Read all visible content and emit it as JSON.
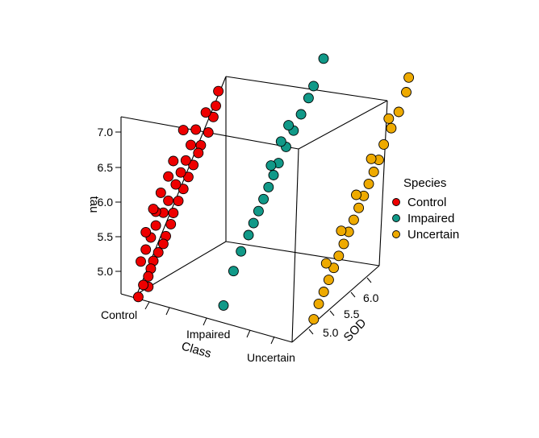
{
  "chart_data": {
    "type": "scatter3d",
    "x_axis": {
      "label": "Class",
      "categories": [
        "Control",
        "Impaired",
        "Uncertain"
      ]
    },
    "y_axis": {
      "label": "SOD",
      "ticks": [
        "5.0",
        "5.5",
        "6.0"
      ]
    },
    "z_axis": {
      "label": "tau",
      "ticks": [
        "5.0",
        "5.5",
        "6.0",
        "6.5",
        "7.0"
      ]
    },
    "legend": {
      "title": "Species",
      "position": "right"
    },
    "colors": {
      "Control": "#ee0000",
      "Impaired": "#119988",
      "Uncertain": "#eeaa00"
    },
    "series": [
      {
        "name": "Control",
        "points": [
          [
            0,
            6.25,
            7.1
          ],
          [
            0,
            6.2,
            6.95
          ],
          [
            0,
            6.1,
            6.75
          ],
          [
            0,
            5.95,
            6.6
          ],
          [
            0,
            5.9,
            6.5
          ],
          [
            0,
            5.8,
            6.35
          ],
          [
            0,
            5.7,
            6.2
          ],
          [
            0,
            5.6,
            6.05
          ],
          [
            0,
            5.5,
            5.9
          ],
          [
            0,
            5.4,
            5.75
          ],
          [
            0,
            5.35,
            5.6
          ],
          [
            0,
            5.25,
            5.45
          ],
          [
            0,
            5.2,
            5.35
          ],
          [
            0,
            5.1,
            5.25
          ],
          [
            0,
            5.0,
            5.15
          ],
          [
            0,
            4.95,
            5.05
          ],
          [
            0,
            4.9,
            4.95
          ],
          [
            0,
            4.8,
            4.85
          ],
          [
            0,
            4.7,
            4.7
          ],
          [
            0,
            6.3,
            7.3
          ],
          [
            0,
            6.05,
            7.05
          ],
          [
            0,
            5.85,
            6.85
          ],
          [
            0,
            5.75,
            6.65
          ],
          [
            0,
            5.65,
            6.45
          ],
          [
            0,
            5.55,
            6.3
          ],
          [
            0,
            5.45,
            6.15
          ],
          [
            0,
            5.3,
            5.95
          ],
          [
            0,
            5.2,
            5.8
          ],
          [
            0,
            5.05,
            5.65
          ],
          [
            0,
            4.95,
            5.5
          ],
          [
            0,
            4.85,
            5.35
          ],
          [
            0,
            4.75,
            5.2
          ],
          [
            0,
            5.0,
            5.9
          ],
          [
            0,
            4.85,
            5.6
          ],
          [
            0,
            4.9,
            4.8
          ],
          [
            0,
            5.6,
            6.9
          ],
          [
            0,
            5.4,
            6.5
          ],
          [
            0,
            5.15,
            6.1
          ],
          [
            0,
            5.3,
            6.3
          ],
          [
            0,
            5.05,
            5.85
          ]
        ]
      },
      {
        "name": "Impaired",
        "points": [
          [
            1,
            6.3,
            7.35
          ],
          [
            1,
            6.2,
            7.2
          ],
          [
            1,
            6.05,
            7.0
          ],
          [
            1,
            5.9,
            6.8
          ],
          [
            1,
            5.75,
            6.6
          ],
          [
            1,
            5.6,
            6.4
          ],
          [
            1,
            5.5,
            6.25
          ],
          [
            1,
            5.4,
            6.1
          ],
          [
            1,
            5.3,
            5.95
          ],
          [
            1,
            5.2,
            5.8
          ],
          [
            1,
            5.1,
            5.65
          ],
          [
            1,
            5.0,
            5.5
          ],
          [
            1,
            4.85,
            5.3
          ],
          [
            1,
            4.7,
            5.05
          ],
          [
            1,
            6.5,
            7.7
          ],
          [
            1,
            5.8,
            6.9
          ],
          [
            1,
            5.65,
            6.7
          ],
          [
            1,
            5.45,
            6.4
          ],
          [
            1,
            4.5,
            4.6
          ]
        ]
      },
      {
        "name": "Uncertain",
        "points": [
          [
            2,
            6.25,
            7.25
          ],
          [
            2,
            6.1,
            7.0
          ],
          [
            2,
            5.95,
            6.8
          ],
          [
            2,
            5.8,
            6.6
          ],
          [
            2,
            5.7,
            6.4
          ],
          [
            2,
            5.6,
            6.25
          ],
          [
            2,
            5.5,
            6.1
          ],
          [
            2,
            5.4,
            5.95
          ],
          [
            2,
            5.3,
            5.8
          ],
          [
            2,
            5.2,
            5.65
          ],
          [
            2,
            5.1,
            5.5
          ],
          [
            2,
            5.0,
            5.35
          ],
          [
            2,
            4.9,
            5.2
          ],
          [
            2,
            4.8,
            5.05
          ],
          [
            2,
            4.7,
            4.9
          ],
          [
            2,
            4.6,
            4.75
          ],
          [
            2,
            4.5,
            4.6
          ],
          [
            2,
            6.3,
            7.45
          ],
          [
            2,
            5.9,
            6.95
          ],
          [
            2,
            5.55,
            6.45
          ],
          [
            2,
            5.25,
            6.0
          ],
          [
            2,
            4.95,
            5.55
          ],
          [
            2,
            4.65,
            5.15
          ],
          [
            2,
            4.4,
            4.4
          ]
        ]
      }
    ]
  }
}
